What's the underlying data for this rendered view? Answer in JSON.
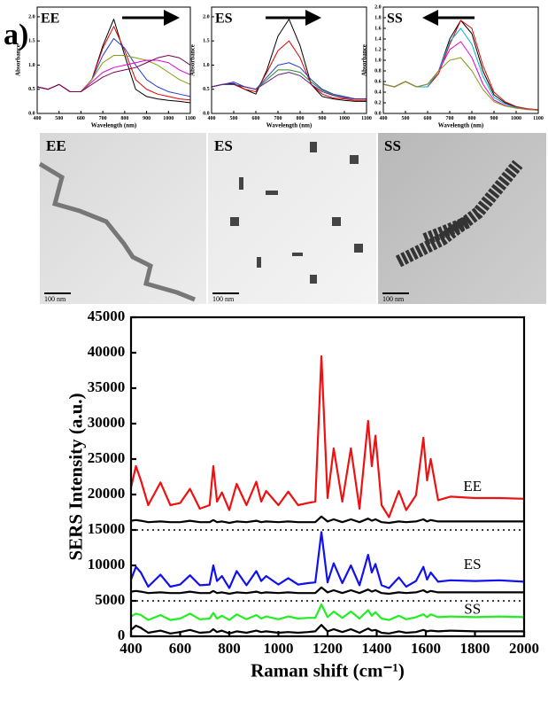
{
  "panel_label": "a)",
  "micrographs": [
    {
      "label": "EE",
      "scale_bar": "100 nm"
    },
    {
      "label": "ES",
      "scale_bar": "100 nm"
    },
    {
      "label": "SS",
      "scale_bar": "100 nm"
    }
  ],
  "chart_data": [
    {
      "type": "line",
      "title": "EE",
      "xlabel": "Wavelength (nm)",
      "ylabel": "Absorbance",
      "x": [
        400,
        450,
        500,
        550,
        600,
        650,
        700,
        750,
        800,
        850,
        900,
        950,
        1000,
        1050,
        1100
      ],
      "xlim": [
        400,
        1100
      ],
      "xticks": [
        400,
        500,
        600,
        700,
        800,
        900,
        1000,
        1100
      ],
      "ylim": [
        0,
        2.2
      ],
      "yticks": [
        {
          "value": 0,
          "label": "0.0"
        },
        {
          "value": 0.5,
          "label": "0.5"
        },
        {
          "value": 1,
          "label": "1.0"
        },
        {
          "value": 1.5,
          "label": "1.5"
        },
        {
          "value": 2,
          "label": "2.0"
        }
      ],
      "series": [
        {
          "color": "#000000",
          "values": [
            0.55,
            0.5,
            0.6,
            0.45,
            0.45,
            0.7,
            1.4,
            1.95,
            1.2,
            0.5,
            0.35,
            0.3,
            0.27,
            0.25,
            0.22
          ]
        },
        {
          "color": "#e00000",
          "values": [
            0.55,
            0.5,
            0.6,
            0.45,
            0.45,
            0.7,
            1.35,
            1.8,
            1.3,
            0.7,
            0.5,
            0.4,
            0.35,
            0.3,
            0.28
          ]
        },
        {
          "color": "#1f3fd0",
          "values": [
            0.55,
            0.5,
            0.6,
            0.45,
            0.45,
            0.7,
            1.2,
            1.55,
            1.35,
            1.0,
            0.7,
            0.55,
            0.45,
            0.4,
            0.35
          ]
        },
        {
          "color": "#8a9a10",
          "values": [
            0.55,
            0.5,
            0.6,
            0.45,
            0.45,
            0.7,
            1.05,
            1.2,
            1.2,
            1.15,
            1.1,
            1.0,
            0.85,
            0.7,
            0.6
          ]
        },
        {
          "color": "#e000e0",
          "values": [
            0.55,
            0.5,
            0.6,
            0.45,
            0.45,
            0.65,
            0.85,
            0.95,
            1.0,
            1.05,
            1.1,
            1.1,
            1.05,
            0.9,
            0.8
          ]
        },
        {
          "color": "#7a0050",
          "values": [
            0.55,
            0.5,
            0.6,
            0.45,
            0.45,
            0.6,
            0.75,
            0.85,
            0.9,
            0.95,
            1.05,
            1.15,
            1.2,
            1.15,
            1.0
          ]
        }
      ]
    },
    {
      "type": "line",
      "title": "ES",
      "xlabel": "Wavelength (nm)",
      "ylabel": "Absorbance",
      "x": [
        400,
        450,
        500,
        550,
        600,
        650,
        700,
        750,
        800,
        850,
        900,
        950,
        1000,
        1050,
        1100
      ],
      "xlim": [
        400,
        1100
      ],
      "xticks": [
        400,
        500,
        600,
        700,
        800,
        900,
        1000,
        1100
      ],
      "ylim": [
        0,
        2.2
      ],
      "yticks": [
        {
          "value": 0,
          "label": "0.0"
        },
        {
          "value": 0.5,
          "label": "0.5"
        },
        {
          "value": 1,
          "label": "1.0"
        },
        {
          "value": 1.5,
          "label": "1.5"
        },
        {
          "value": 2,
          "label": "2.0"
        }
      ],
      "series": [
        {
          "color": "#000000",
          "values": [
            0.55,
            0.6,
            0.62,
            0.5,
            0.4,
            0.9,
            1.6,
            1.95,
            1.4,
            0.6,
            0.35,
            0.3,
            0.27,
            0.25,
            0.25
          ]
        },
        {
          "color": "#e00000",
          "values": [
            0.55,
            0.6,
            0.6,
            0.5,
            0.45,
            0.85,
            1.3,
            1.5,
            1.15,
            0.6,
            0.4,
            0.32,
            0.3,
            0.27,
            0.27
          ]
        },
        {
          "color": "#1f3fd0",
          "values": [
            0.55,
            0.6,
            0.65,
            0.55,
            0.5,
            0.75,
            1.0,
            1.05,
            0.95,
            0.7,
            0.5,
            0.4,
            0.35,
            0.3,
            0.3
          ]
        },
        {
          "color": "#2a8a2a",
          "values": [
            0.55,
            0.6,
            0.6,
            0.55,
            0.5,
            0.7,
            0.9,
            0.9,
            0.85,
            0.65,
            0.48,
            0.38,
            0.33,
            0.3,
            0.3
          ]
        },
        {
          "color": "#6a1a8a",
          "values": [
            0.55,
            0.6,
            0.6,
            0.55,
            0.5,
            0.65,
            0.8,
            0.85,
            0.78,
            0.6,
            0.45,
            0.37,
            0.32,
            0.3,
            0.3
          ]
        }
      ]
    },
    {
      "type": "line",
      "title": "SS",
      "xlabel": "Wavelength (nm)",
      "ylabel": "Absorbance",
      "x": [
        400,
        450,
        500,
        550,
        600,
        650,
        700,
        750,
        800,
        850,
        900,
        950,
        1000,
        1050,
        1100
      ],
      "xlim": [
        400,
        1100
      ],
      "xticks": [
        400,
        500,
        600,
        700,
        800,
        900,
        1000,
        1100
      ],
      "ylim": [
        0,
        2.0
      ],
      "yticks": [
        {
          "value": 0,
          "label": "0.0"
        },
        {
          "value": 0.2,
          "label": "0.2"
        },
        {
          "value": 0.4,
          "label": "0.4"
        },
        {
          "value": 0.6,
          "label": "0.6"
        },
        {
          "value": 0.8,
          "label": "0.8"
        },
        {
          "value": 1,
          "label": "1.0"
        },
        {
          "value": 1.2,
          "label": "1.2"
        },
        {
          "value": 1.4,
          "label": "1.4"
        },
        {
          "value": 1.6,
          "label": "1.6"
        },
        {
          "value": 1.8,
          "label": "1.8"
        },
        {
          "value": 2,
          "label": "2.0"
        }
      ],
      "series": [
        {
          "color": "#000000",
          "values": [
            0.55,
            0.5,
            0.6,
            0.5,
            0.5,
            0.8,
            1.4,
            1.75,
            1.5,
            0.8,
            0.35,
            0.2,
            0.12,
            0.08,
            0.06
          ]
        },
        {
          "color": "#e00000",
          "values": [
            0.55,
            0.5,
            0.6,
            0.5,
            0.5,
            0.75,
            1.3,
            1.75,
            1.6,
            0.9,
            0.4,
            0.22,
            0.13,
            0.09,
            0.07
          ]
        },
        {
          "color": "#00b0d0",
          "values": [
            0.55,
            0.5,
            0.6,
            0.5,
            0.5,
            0.8,
            1.35,
            1.6,
            1.3,
            0.7,
            0.3,
            0.18,
            0.11,
            0.08,
            0.06
          ]
        },
        {
          "color": "#e000e0",
          "values": [
            0.55,
            0.5,
            0.6,
            0.5,
            0.55,
            0.8,
            1.2,
            1.35,
            1.05,
            0.55,
            0.25,
            0.15,
            0.1,
            0.08,
            0.06
          ]
        },
        {
          "color": "#8a9a10",
          "values": [
            0.55,
            0.5,
            0.6,
            0.5,
            0.55,
            0.8,
            1.0,
            1.05,
            0.8,
            0.45,
            0.22,
            0.14,
            0.1,
            0.07,
            0.06
          ]
        }
      ]
    },
    {
      "type": "line",
      "xlabel": "Raman shift (cm⁻¹)",
      "ylabel": "SERS Intensity (a.u.)",
      "x": [
        400,
        420,
        440,
        470,
        520,
        560,
        600,
        640,
        680,
        720,
        735,
        750,
        770,
        800,
        830,
        870,
        910,
        930,
        950,
        1000,
        1040,
        1080,
        1120,
        1150,
        1175,
        1200,
        1225,
        1260,
        1295,
        1330,
        1365,
        1380,
        1395,
        1420,
        1450,
        1490,
        1520,
        1560,
        1590,
        1605,
        1620,
        1650,
        1700,
        1800,
        1900,
        2000
      ],
      "xlim": [
        400,
        2000
      ],
      "xticks": [
        400,
        600,
        800,
        1000,
        1200,
        1400,
        1600,
        1800,
        2000
      ],
      "ylim": [
        0,
        45000
      ],
      "yticks": [
        0,
        5000,
        10000,
        15000,
        20000,
        25000,
        30000,
        35000,
        40000,
        45000
      ],
      "reference_lines": [
        15000,
        5000
      ],
      "annotations": [
        {
          "text": "EE",
          "x": 1790,
          "y": 21000
        },
        {
          "text": "ES",
          "x": 1790,
          "y": 10000
        },
        {
          "text": "SS",
          "x": 1790,
          "y": 3700
        }
      ],
      "series": [
        {
          "color": "#ee1111",
          "values": [
            21000,
            24000,
            22000,
            18500,
            21700,
            18500,
            18800,
            20800,
            18000,
            18500,
            24000,
            19000,
            20300,
            17800,
            21500,
            18500,
            21800,
            19000,
            20500,
            18500,
            20400,
            18500,
            18800,
            19000,
            39500,
            19500,
            26500,
            19000,
            26500,
            18000,
            30400,
            24000,
            28300,
            18500,
            16800,
            20500,
            17800,
            19900,
            28000,
            22000,
            25000,
            19200,
            19700,
            19500,
            19500,
            19400
          ]
        },
        {
          "color": "#000000",
          "values": [
            16300,
            16400,
            16300,
            16100,
            16200,
            16100,
            16100,
            16300,
            16100,
            16100,
            16400,
            16100,
            16200,
            16000,
            16200,
            16100,
            16300,
            16100,
            16200,
            16100,
            16200,
            16100,
            16100,
            16100,
            16900,
            16200,
            16500,
            16100,
            16500,
            16100,
            16600,
            16300,
            16500,
            16100,
            16000,
            16200,
            16100,
            16200,
            16500,
            16200,
            16400,
            16200,
            16200,
            16200,
            16200,
            16200
          ]
        },
        {
          "color": "#1111ee",
          "values": [
            8000,
            9800,
            9000,
            7000,
            8700,
            7000,
            7300,
            8600,
            7200,
            7300,
            10000,
            7800,
            8500,
            6800,
            9200,
            7200,
            9200,
            7800,
            8500,
            7300,
            8200,
            7300,
            7500,
            7600,
            14700,
            7600,
            10300,
            7500,
            10000,
            7200,
            11500,
            9000,
            10200,
            7200,
            6800,
            8300,
            7000,
            7800,
            9800,
            8000,
            9000,
            7700,
            7900,
            7800,
            7900,
            7700
          ]
        },
        {
          "color": "#000000",
          "values": [
            6300,
            6400,
            6300,
            6100,
            6200,
            6100,
            6100,
            6300,
            6100,
            6100,
            6400,
            6100,
            6200,
            6000,
            6200,
            6100,
            6300,
            6100,
            6200,
            6100,
            6200,
            6100,
            6100,
            6100,
            6900,
            6200,
            6500,
            6100,
            6500,
            6100,
            6600,
            6300,
            6500,
            6100,
            6000,
            6200,
            6100,
            6200,
            6500,
            6200,
            6400,
            6200,
            6200,
            6200,
            6200,
            6200
          ]
        },
        {
          "color": "#22ee22",
          "values": [
            2800,
            3200,
            3000,
            2300,
            3000,
            2300,
            2500,
            3200,
            2400,
            2500,
            3300,
            2500,
            2900,
            2300,
            3100,
            2400,
            3000,
            2500,
            2800,
            2400,
            2800,
            2500,
            2600,
            2600,
            4500,
            2700,
            3500,
            2600,
            3500,
            2500,
            3700,
            2900,
            3400,
            2500,
            2300,
            2900,
            2400,
            2700,
            3100,
            2700,
            3100,
            2700,
            2800,
            2700,
            2800,
            2700
          ]
        },
        {
          "color": "#000000",
          "values": [
            900,
            1500,
            1200,
            500,
            800,
            400,
            600,
            900,
            500,
            600,
            1000,
            600,
            800,
            400,
            700,
            500,
            800,
            600,
            700,
            500,
            600,
            500,
            600,
            700,
            1600,
            700,
            1000,
            600,
            1000,
            500,
            1100,
            800,
            900,
            500,
            400,
            700,
            500,
            600,
            900,
            700,
            800,
            700,
            800,
            700,
            700,
            700
          ]
        }
      ]
    }
  ]
}
